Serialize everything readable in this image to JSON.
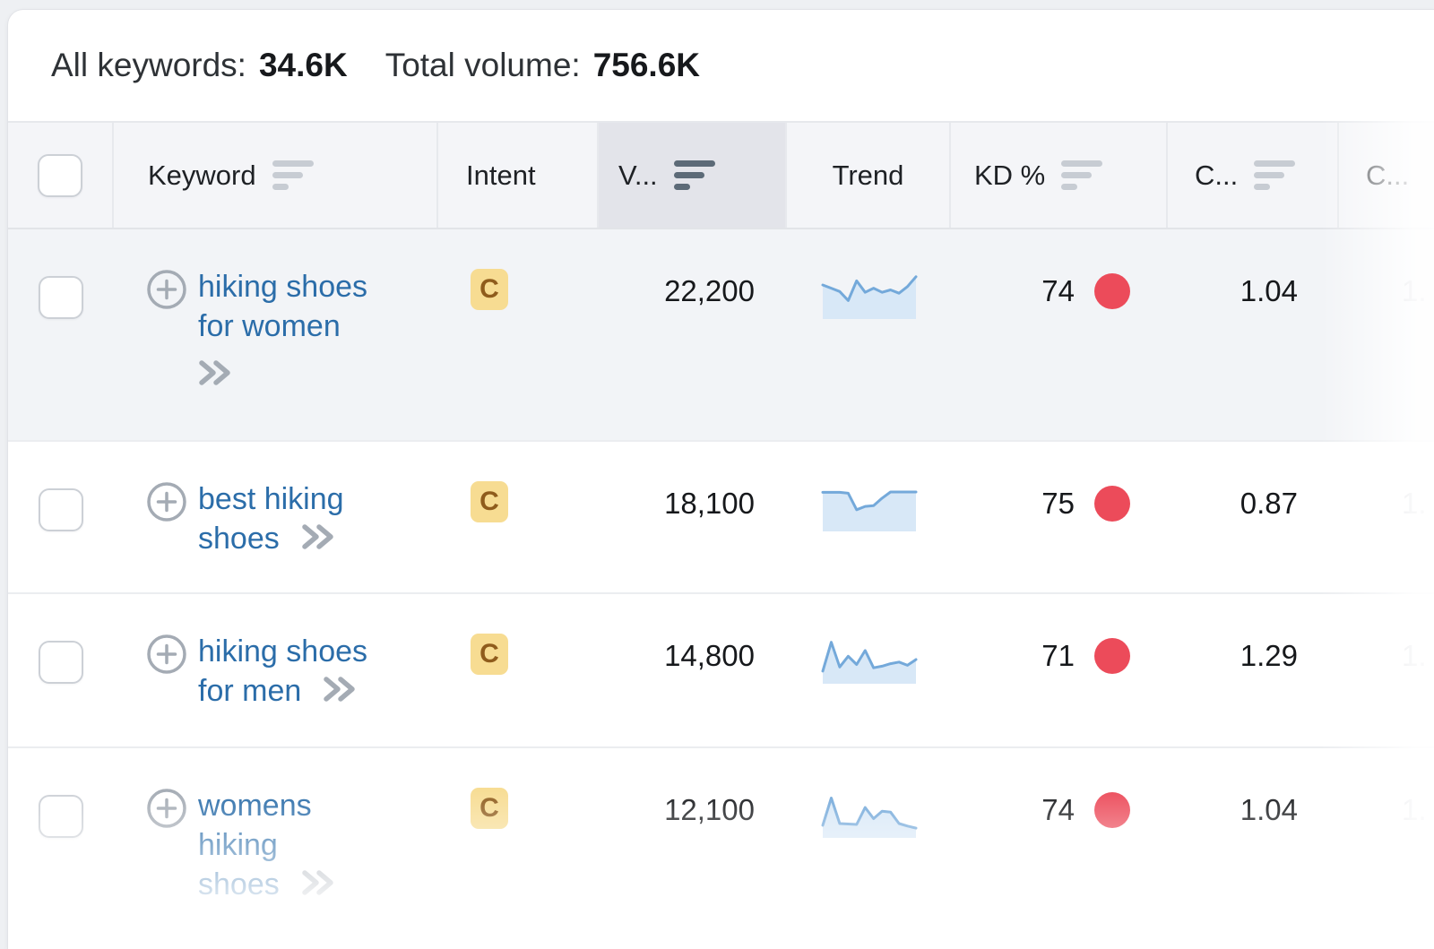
{
  "summary": {
    "all_keywords_label": "All keywords:",
    "all_keywords_value": "34.6K",
    "total_volume_label": "Total volume:",
    "total_volume_value": "756.6K"
  },
  "table": {
    "columns": [
      {
        "id": "select",
        "label": "",
        "sortable": false,
        "sort_active": false
      },
      {
        "id": "keyword",
        "label": "Keyword",
        "sortable": true,
        "sort_active": false
      },
      {
        "id": "intent",
        "label": "Intent",
        "sortable": false,
        "sort_active": false
      },
      {
        "id": "volume",
        "label": "V...",
        "sortable": true,
        "sort_active": true
      },
      {
        "id": "trend",
        "label": "Trend",
        "sortable": false,
        "sort_active": false
      },
      {
        "id": "kd",
        "label": "KD %",
        "sortable": true,
        "sort_active": false
      },
      {
        "id": "cpc",
        "label": "C...",
        "sortable": true,
        "sort_active": false
      },
      {
        "id": "competition",
        "label": "C...",
        "sortable": false,
        "sort_active": false
      }
    ],
    "rows": [
      {
        "keyword": "hiking shoes for women",
        "keyword_lines": [
          "hiking shoes",
          "for women"
        ],
        "chevron_inline": false,
        "intent": "C",
        "volume": "22,200",
        "kd": "74",
        "cpc": "1.04",
        "last_col": "1.",
        "highlighted": true,
        "trend": [
          26,
          34,
          42,
          64,
          16,
          44,
          34,
          44,
          38,
          46,
          30,
          6
        ]
      },
      {
        "keyword": "best hiking shoes",
        "keyword_lines": [
          "best hiking",
          "shoes"
        ],
        "chevron_inline": true,
        "intent": "C",
        "volume": "18,100",
        "kd": "75",
        "cpc": "0.87",
        "last_col": "1.",
        "highlighted": false,
        "trend": [
          14,
          14,
          14,
          16,
          56,
          48,
          46,
          28,
          13,
          13,
          13,
          13
        ]
      },
      {
        "keyword": "hiking shoes for men",
        "keyword_lines": [
          "hiking shoes",
          "for men"
        ],
        "chevron_inline": true,
        "intent": "C",
        "volume": "14,800",
        "kd": "71",
        "cpc": "1.29",
        "last_col": "1.",
        "highlighted": false,
        "trend": [
          78,
          8,
          68,
          42,
          62,
          28,
          70,
          66,
          60,
          56,
          64,
          50
        ]
      },
      {
        "keyword": "womens hiking shoes",
        "keyword_lines": [
          "womens",
          "hiking",
          "shoes"
        ],
        "chevron_inline": true,
        "intent": "C",
        "volume": "12,100",
        "kd": "74",
        "cpc": "1.04",
        "last_col": "1.",
        "highlighted": false,
        "trend": [
          78,
          12,
          74,
          75,
          76,
          35,
          62,
          44,
          46,
          74,
          80,
          85
        ]
      }
    ]
  },
  "colors": {
    "link_blue": "#2b6da9",
    "intent_badge_bg": "#f7dc92",
    "intent_badge_text": "#8f5c1c",
    "kd_dot_red": "#ec4b5a",
    "spark_line": "#74a9da",
    "spark_fill": "#d8e8f7",
    "volume_header_bg": "#e3e4ea",
    "row_highlight_bg": "#f2f4f7"
  }
}
